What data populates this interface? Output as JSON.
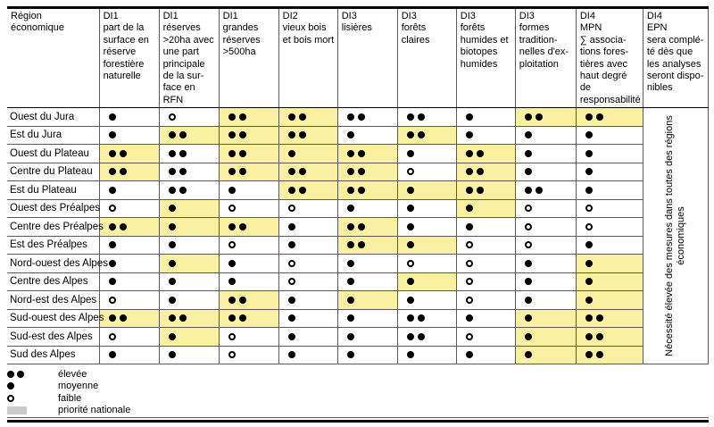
{
  "table": {
    "region_header_lines": [
      "Région",
      "économique"
    ],
    "columns": [
      {
        "di": "DI1",
        "lines": [
          "part de la",
          "surface en",
          "réserve",
          "forestière",
          "naturelle"
        ]
      },
      {
        "di": "DI1",
        "lines": [
          "réserves",
          ">20ha avec",
          "une part",
          "principale",
          "de la sur-",
          "face en RFN"
        ]
      },
      {
        "di": "DI1",
        "lines": [
          "grandes",
          "réserves",
          ">500ha"
        ]
      },
      {
        "di": "DI2",
        "lines": [
          "vieux bois",
          "et bois mort"
        ]
      },
      {
        "di": "DI3",
        "lines": [
          "lisières"
        ]
      },
      {
        "di": "DI3",
        "lines": [
          "forêts",
          "claires"
        ]
      },
      {
        "di": "DI3",
        "lines": [
          "forêts",
          "humides et",
          "biotopes",
          "humides"
        ]
      },
      {
        "di": "DI3",
        "lines": [
          "formes",
          "tradition-",
          "nelles d'ex-",
          "ploitation"
        ]
      },
      {
        "di": "DI4",
        "lines": [
          "MPN",
          "∑ associa-",
          "tions fores-",
          "tières avec",
          "haut degré de",
          "responsabilité"
        ]
      },
      {
        "di": "DI4",
        "lines": [
          "EPN",
          "sera complé-",
          "té dès que",
          "les analyses",
          "seront dispo-",
          "nibles"
        ]
      }
    ],
    "rating_scale": {
      "2": "élevée",
      "1": "moyenne",
      "0": "faible"
    },
    "rows": [
      {
        "region": "Ouest du Jura",
        "cells": [
          [
            1,
            0
          ],
          [
            0,
            0
          ],
          [
            2,
            1
          ],
          [
            2,
            1
          ],
          [
            2,
            0
          ],
          [
            2,
            0
          ],
          [
            1,
            0
          ],
          [
            2,
            1
          ],
          [
            2,
            1
          ]
        ]
      },
      {
        "region": "Est du Jura",
        "cells": [
          [
            1,
            0
          ],
          [
            2,
            1
          ],
          [
            2,
            1
          ],
          [
            2,
            1
          ],
          [
            1,
            0
          ],
          [
            2,
            1
          ],
          [
            1,
            0
          ],
          [
            1,
            0
          ],
          [
            1,
            0
          ]
        ]
      },
      {
        "region": "Ouest du Plateau",
        "cells": [
          [
            2,
            1
          ],
          [
            2,
            0
          ],
          [
            2,
            1
          ],
          [
            1,
            1
          ],
          [
            2,
            1
          ],
          [
            1,
            0
          ],
          [
            2,
            1
          ],
          [
            1,
            0
          ],
          [
            1,
            0
          ]
        ]
      },
      {
        "region": "Centre du Plateau",
        "cells": [
          [
            2,
            1
          ],
          [
            2,
            0
          ],
          [
            2,
            1
          ],
          [
            2,
            1
          ],
          [
            2,
            1
          ],
          [
            0,
            0
          ],
          [
            2,
            1
          ],
          [
            1,
            0
          ],
          [
            1,
            0
          ]
        ]
      },
      {
        "region": "Est du Plateau",
        "cells": [
          [
            1,
            0
          ],
          [
            2,
            0
          ],
          [
            1,
            0
          ],
          [
            2,
            1
          ],
          [
            2,
            1
          ],
          [
            1,
            1
          ],
          [
            2,
            1
          ],
          [
            2,
            0
          ],
          [
            1,
            0
          ]
        ]
      },
      {
        "region": "Ouest des Préalpes",
        "cells": [
          [
            0,
            0
          ],
          [
            1,
            1
          ],
          [
            0,
            0
          ],
          [
            0,
            0
          ],
          [
            1,
            0
          ],
          [
            1,
            0
          ],
          [
            1,
            1
          ],
          [
            0,
            0
          ],
          [
            0,
            0
          ]
        ]
      },
      {
        "region": "Centre des Préalpes",
        "cells": [
          [
            2,
            1
          ],
          [
            1,
            1
          ],
          [
            2,
            1
          ],
          [
            1,
            0
          ],
          [
            2,
            1
          ],
          [
            1,
            0
          ],
          [
            1,
            0
          ],
          [
            0,
            0
          ],
          [
            0,
            0
          ]
        ]
      },
      {
        "region": "Est des Préalpes",
        "cells": [
          [
            1,
            0
          ],
          [
            1,
            0
          ],
          [
            0,
            0
          ],
          [
            1,
            0
          ],
          [
            2,
            1
          ],
          [
            1,
            1
          ],
          [
            0,
            0
          ],
          [
            0,
            0
          ],
          [
            1,
            0
          ]
        ]
      },
      {
        "region": "Nord-ouest des Alpes",
        "cells": [
          [
            1,
            0
          ],
          [
            1,
            1
          ],
          [
            1,
            0
          ],
          [
            0,
            0
          ],
          [
            1,
            0
          ],
          [
            0,
            0
          ],
          [
            0,
            0
          ],
          [
            1,
            0
          ],
          [
            1,
            1
          ]
        ]
      },
      {
        "region": "Centre des Alpes",
        "cells": [
          [
            1,
            0
          ],
          [
            1,
            0
          ],
          [
            1,
            0
          ],
          [
            0,
            0
          ],
          [
            1,
            0
          ],
          [
            1,
            1
          ],
          [
            0,
            0
          ],
          [
            1,
            0
          ],
          [
            1,
            1
          ]
        ]
      },
      {
        "region": "Nord-est des Alpes",
        "cells": [
          [
            0,
            0
          ],
          [
            1,
            0
          ],
          [
            2,
            1
          ],
          [
            1,
            0
          ],
          [
            1,
            1
          ],
          [
            1,
            0
          ],
          [
            0,
            0
          ],
          [
            1,
            0
          ],
          [
            1,
            1
          ]
        ]
      },
      {
        "region": "Sud-ouest des Alpes",
        "cells": [
          [
            2,
            1
          ],
          [
            2,
            1
          ],
          [
            2,
            1
          ],
          [
            1,
            0
          ],
          [
            1,
            0
          ],
          [
            2,
            0
          ],
          [
            1,
            0
          ],
          [
            1,
            1
          ],
          [
            2,
            1
          ]
        ]
      },
      {
        "region": "Sud-est des Alpes",
        "cells": [
          [
            0,
            0
          ],
          [
            1,
            1
          ],
          [
            0,
            0
          ],
          [
            1,
            0
          ],
          [
            1,
            0
          ],
          [
            2,
            0
          ],
          [
            0,
            0
          ],
          [
            1,
            1
          ],
          [
            2,
            1
          ]
        ]
      },
      {
        "region": "Sud des Alpes",
        "cells": [
          [
            1,
            0
          ],
          [
            1,
            0
          ],
          [
            0,
            0
          ],
          [
            1,
            0
          ],
          [
            1,
            0
          ],
          [
            1,
            0
          ],
          [
            1,
            0
          ],
          [
            1,
            1
          ],
          [
            2,
            1
          ]
        ]
      }
    ],
    "epn_note_lines": [
      "Nécessité élevée des mesures dans toutes des régions",
      "économiques"
    ]
  },
  "legend": {
    "items": [
      {
        "symbol": "high",
        "label": "élevée"
      },
      {
        "symbol": "medium",
        "label": "moyenne"
      },
      {
        "symbol": "low",
        "label": "faible"
      },
      {
        "symbol": "national",
        "label": "priorité nationale"
      }
    ]
  },
  "colors": {
    "national_priority_cell": "#FAF0A2",
    "legend_national_swatch": "#C9C9C9",
    "dot": "#000000"
  }
}
